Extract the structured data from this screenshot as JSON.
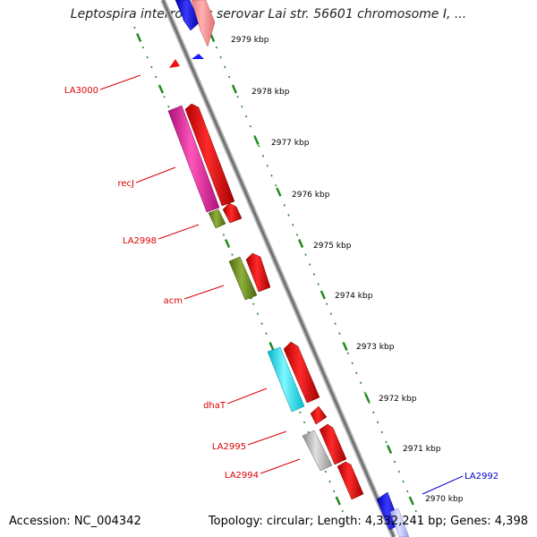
{
  "title": "Leptospira interrogans serovar Lai str. 56601 chromosome I, ...",
  "footer": {
    "accession": "Accession: NC_004342",
    "topology": "Topology: circular; Length: 4,332,241 bp; Genes: 4,398"
  },
  "colors": {
    "label_red": "#dd0000",
    "label_blue": "#0000cc",
    "backbone": "#8a8a8a",
    "ruler": "#1f8a1f"
  },
  "kbp_labels": [
    "2979 kbp",
    "2978 kbp",
    "2977 kbp",
    "2976 kbp",
    "2975 kbp",
    "2974 kbp",
    "2973 kbp",
    "2972 kbp",
    "2971 kbp",
    "2970 kbp"
  ],
  "gene_labels": [
    {
      "text": "LA3000",
      "color": "#dd0000"
    },
    {
      "text": "recJ",
      "color": "#dd0000"
    },
    {
      "text": "LA2998",
      "color": "#dd0000"
    },
    {
      "text": "acm",
      "color": "#dd0000"
    },
    {
      "text": "dhaT",
      "color": "#dd0000"
    },
    {
      "text": "LA2995",
      "color": "#dd0000"
    },
    {
      "text": "LA2994",
      "color": "#dd0000"
    },
    {
      "text": "LA2992",
      "color": "#0000cc"
    }
  ]
}
